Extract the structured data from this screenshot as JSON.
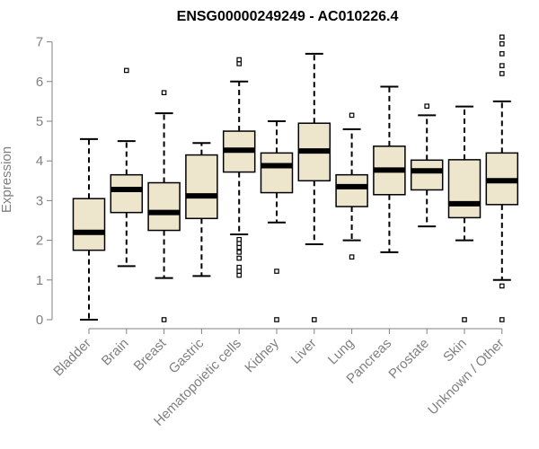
{
  "chart_data": {
    "type": "boxplot",
    "title": "ENSG00000249249 - AC010226.4",
    "xlabel": "",
    "ylabel": "Expression",
    "ylim": [
      0,
      7
    ],
    "yticks": [
      0,
      1,
      2,
      3,
      4,
      5,
      6,
      7
    ],
    "colors": {
      "box_fill": "#ede6cd",
      "stroke": "#000000",
      "axis": "#808080"
    },
    "categories": [
      "Bladder",
      "Brain",
      "Breast",
      "Gastric",
      "Hematopoietic cells",
      "Kidney",
      "Liver",
      "Lung",
      "Pancreas",
      "Prostate",
      "Skin",
      "Unknown / Other"
    ],
    "boxes": [
      {
        "name": "Bladder",
        "whisker_low": 0.0,
        "q1": 1.75,
        "median": 2.2,
        "q3": 3.05,
        "whisker_high": 4.55,
        "outliers": []
      },
      {
        "name": "Brain",
        "whisker_low": 1.35,
        "q1": 2.7,
        "median": 3.28,
        "q3": 3.65,
        "whisker_high": 4.5,
        "outliers": [
          6.28
        ]
      },
      {
        "name": "Breast",
        "whisker_low": 1.05,
        "q1": 2.25,
        "median": 2.7,
        "q3": 3.45,
        "whisker_high": 5.2,
        "outliers": [
          0.0,
          5.72
        ]
      },
      {
        "name": "Gastric",
        "whisker_low": 1.1,
        "q1": 2.55,
        "median": 3.12,
        "q3": 4.15,
        "whisker_high": 4.45,
        "outliers": []
      },
      {
        "name": "Hematopoietic cells",
        "whisker_low": 2.15,
        "q1": 3.72,
        "median": 4.27,
        "q3": 4.75,
        "whisker_high": 6.0,
        "outliers": [
          1.12,
          1.22,
          1.32,
          1.55,
          1.7,
          1.82,
          1.92,
          2.02,
          6.45,
          6.55
        ]
      },
      {
        "name": "Kidney",
        "whisker_low": 2.45,
        "q1": 3.2,
        "median": 3.88,
        "q3": 4.2,
        "whisker_high": 5.0,
        "outliers": [
          0.0,
          1.22
        ]
      },
      {
        "name": "Liver",
        "whisker_low": 1.9,
        "q1": 3.5,
        "median": 4.25,
        "q3": 4.95,
        "whisker_high": 6.7,
        "outliers": [
          0.0
        ]
      },
      {
        "name": "Lung",
        "whisker_low": 2.0,
        "q1": 2.85,
        "median": 3.35,
        "q3": 3.65,
        "whisker_high": 4.8,
        "outliers": [
          1.58,
          5.15
        ]
      },
      {
        "name": "Pancreas",
        "whisker_low": 1.7,
        "q1": 3.15,
        "median": 3.77,
        "q3": 4.37,
        "whisker_high": 5.87,
        "outliers": []
      },
      {
        "name": "Prostate",
        "whisker_low": 2.35,
        "q1": 3.27,
        "median": 3.75,
        "q3": 4.02,
        "whisker_high": 5.15,
        "outliers": [
          5.38
        ]
      },
      {
        "name": "Skin",
        "whisker_low": 2.0,
        "q1": 2.57,
        "median": 2.92,
        "q3": 4.03,
        "whisker_high": 5.37,
        "outliers": [
          0.0
        ]
      },
      {
        "name": "Unknown / Other",
        "whisker_low": 1.0,
        "q1": 2.9,
        "median": 3.5,
        "q3": 4.2,
        "whisker_high": 5.5,
        "outliers": [
          0.0,
          0.85,
          6.2,
          6.4,
          6.7,
          6.95,
          7.12
        ]
      }
    ]
  }
}
